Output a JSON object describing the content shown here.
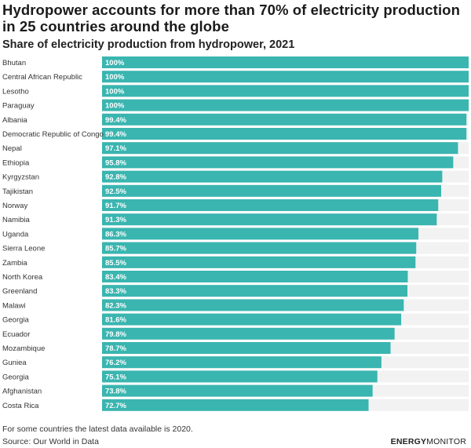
{
  "title": "Hydropower accounts for more than 70% of electricity production in 25 countries around the globe",
  "subtitle": "Share of electricity production from hydropower, 2021",
  "footnote": "For some countries the latest data available is 2020.",
  "source": "Source: Our World in Data",
  "brand": {
    "part1": "ENERGY",
    "part2": "MONITOR"
  },
  "colors": {
    "bar": "#3ab5b0",
    "track": "#f2f2f2",
    "label": "#ffffff"
  },
  "chart_data": {
    "type": "bar",
    "orientation": "horizontal",
    "title": "Hydropower accounts for more than 70% of electricity production in 25 countries around the globe",
    "subtitle": "Share of electricity production from hydropower, 2021",
    "xlim": [
      0,
      100
    ],
    "unit": "%",
    "categories": [
      "Bhutan",
      "Central African Republic",
      "Lesotho",
      "Paraguay",
      "Albania",
      "Democratic Republic of Congo",
      "Nepal",
      "Ethiopia",
      "Kyrgyzstan",
      "Tajikistan",
      "Norway",
      "Namibia",
      "Uganda",
      "Sierra Leone",
      "Zambia",
      "North Korea",
      "Greenland",
      "Malawi",
      "Georgia",
      "Ecuador",
      "Mozambique",
      "Guniea",
      "Georgia",
      "Afghanistan",
      "Costa Rica"
    ],
    "values": [
      100,
      100,
      100,
      100,
      99.4,
      99.4,
      97.1,
      95.8,
      92.8,
      92.5,
      91.7,
      91.3,
      86.3,
      85.7,
      85.5,
      83.4,
      83.3,
      82.3,
      81.6,
      79.8,
      78.7,
      76.2,
      75.1,
      73.8,
      72.7
    ],
    "value_labels": [
      "100%",
      "100%",
      "100%",
      "100%",
      "99.4%",
      "99.4%",
      "97.1%",
      "95.8%",
      "92.8%",
      "92.5%",
      "91.7%",
      "91.3%",
      "86.3%",
      "85.7%",
      "85.5%",
      "83.4%",
      "83.3%",
      "82.3%",
      "81.6%",
      "79.8%",
      "78.7%",
      "76.2%",
      "75.1%",
      "73.8%",
      "72.7%"
    ]
  }
}
